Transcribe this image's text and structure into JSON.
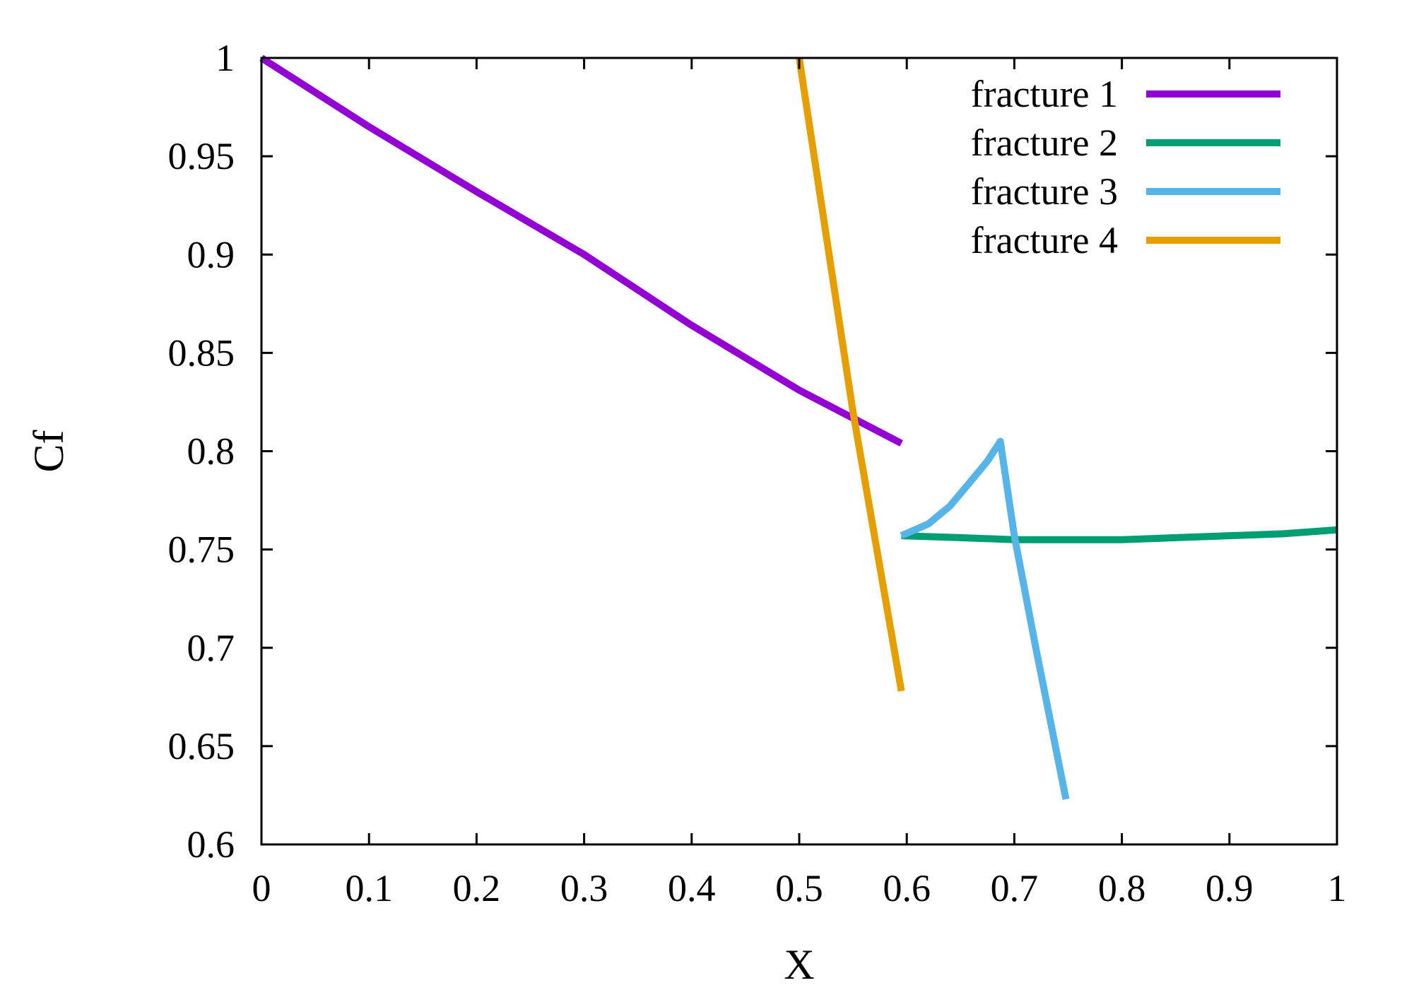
{
  "chart_data": {
    "type": "line",
    "title": "",
    "xlabel": "X",
    "ylabel": "Cf",
    "xlim": [
      0,
      1
    ],
    "ylim": [
      0.6,
      1
    ],
    "x_ticks": [
      0,
      0.1,
      0.2,
      0.3,
      0.4,
      0.5,
      0.6,
      0.7,
      0.8,
      0.9,
      1
    ],
    "x_tick_labels": [
      "0",
      "0.1",
      "0.2",
      "0.3",
      "0.4",
      "0.5",
      "0.6",
      "0.7",
      "0.8",
      "0.9",
      "1"
    ],
    "y_ticks": [
      0.6,
      0.65,
      0.7,
      0.75,
      0.8,
      0.85,
      0.9,
      0.95,
      1
    ],
    "y_tick_labels": [
      "0.6",
      "0.65",
      "0.7",
      "0.75",
      "0.8",
      "0.85",
      "0.9",
      "0.95",
      "1"
    ],
    "grid": false,
    "legend_position": "top-right",
    "series": [
      {
        "name": "fracture 1",
        "color": "#9400d3",
        "points": [
          [
            0,
            1.0
          ],
          [
            0.1,
            0.965
          ],
          [
            0.2,
            0.932
          ],
          [
            0.3,
            0.9
          ],
          [
            0.4,
            0.864
          ],
          [
            0.5,
            0.831
          ],
          [
            0.595,
            0.804
          ]
        ]
      },
      {
        "name": "fracture 2",
        "color": "#009e73",
        "points": [
          [
            0.595,
            0.757
          ],
          [
            0.65,
            0.756
          ],
          [
            0.7,
            0.755
          ],
          [
            0.75,
            0.755
          ],
          [
            0.8,
            0.755
          ],
          [
            0.85,
            0.756
          ],
          [
            0.9,
            0.757
          ],
          [
            0.95,
            0.758
          ],
          [
            1.0,
            0.76
          ]
        ]
      },
      {
        "name": "fracture 3",
        "color": "#56b4e9",
        "points": [
          [
            0.595,
            0.757
          ],
          [
            0.62,
            0.763
          ],
          [
            0.64,
            0.772
          ],
          [
            0.66,
            0.785
          ],
          [
            0.675,
            0.795
          ],
          [
            0.687,
            0.805
          ],
          [
            0.7,
            0.757
          ],
          [
            0.72,
            0.7
          ],
          [
            0.748,
            0.623
          ]
        ]
      },
      {
        "name": "fracture 4",
        "color": "#e69f00",
        "points": [
          [
            0.5,
            1.0
          ],
          [
            0.55,
            0.82
          ],
          [
            0.595,
            0.678
          ]
        ]
      }
    ]
  }
}
